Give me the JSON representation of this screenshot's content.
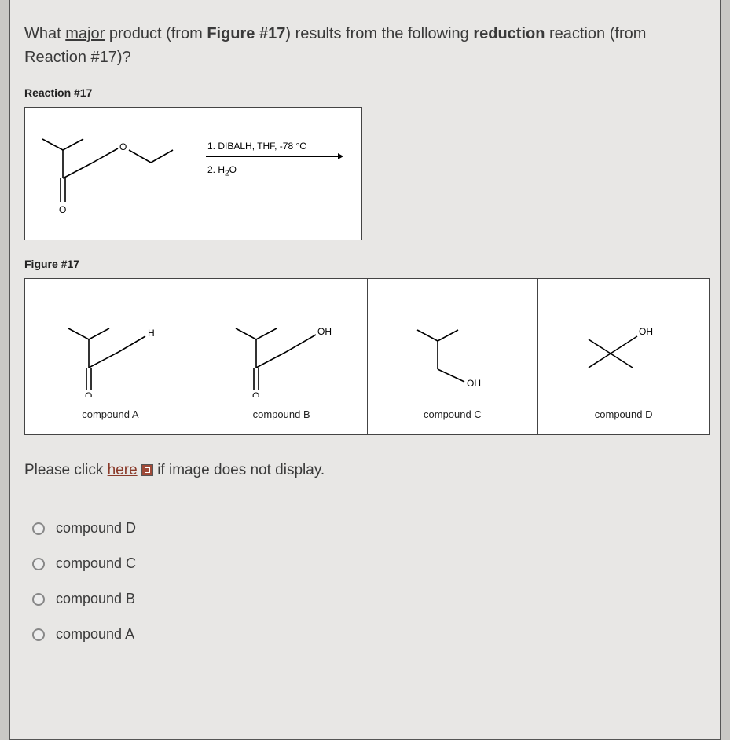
{
  "question_html": "What <span class='u'>major</span> product (from <strong>Figure #17</strong>) results from the following <strong>reduction</strong> reaction (from Reaction #17)?",
  "reaction_label": "Reaction #17",
  "figure_label": "Figure #17",
  "reagents": {
    "line1": "1. DIBALH, THF, -78 °C",
    "line2_prefix": "2. H",
    "line2_sub": "2",
    "line2_suffix": "O"
  },
  "compounds": {
    "a": {
      "label": "compound A",
      "atom": "H"
    },
    "b": {
      "label": "compound B",
      "atom": "OH"
    },
    "c": {
      "label": "compound C",
      "atom": "OH"
    },
    "d": {
      "label": "compound D",
      "atom": "OH"
    }
  },
  "fallback": {
    "prefix": "Please click ",
    "link": "here",
    "suffix": " if image does not display."
  },
  "options": [
    "compound D",
    "compound C",
    "compound B",
    "compound A"
  ],
  "colors": {
    "page_bg": "#e8e7e5",
    "outer_bg": "#c9c8c5",
    "box_bg": "#ffffff",
    "border": "#444444",
    "text": "#3a3a3a",
    "link": "#8a3a2a",
    "stroke": "#000000"
  },
  "chem": {
    "carbonyl_label": "O",
    "ether_label": "O"
  }
}
